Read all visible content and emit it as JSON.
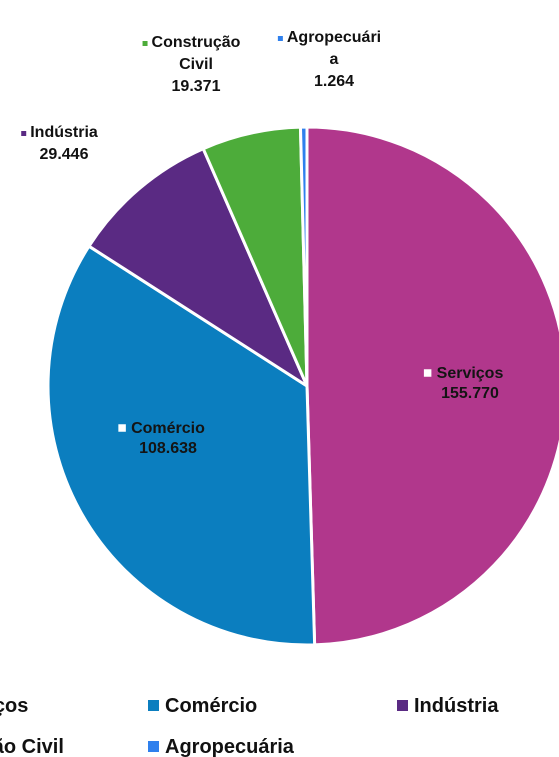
{
  "chart_data": {
    "type": "pie",
    "title": "",
    "categories": [
      "Serviços",
      "Comércio",
      "Indústria",
      "Construção Civil",
      "Agropecuária"
    ],
    "values": [
      155770,
      108638,
      29446,
      19371,
      1264
    ],
    "value_labels": [
      "155.770",
      "108.638",
      "29.446",
      "19.371",
      "1.264"
    ],
    "slice_label_lines": [
      [
        "Serviços"
      ],
      [
        "Comércio"
      ],
      [
        "Indústria"
      ],
      [
        "Construção",
        "Civil"
      ],
      [
        "Agropecuári",
        "a"
      ]
    ],
    "colors": [
      "#b1378c",
      "#0b7ebf",
      "#5a2a83",
      "#4dac3a",
      "#2f80ed"
    ],
    "legend": {
      "placement": "bottom",
      "entries": [
        "Serviços",
        "Comércio",
        "Indústria",
        "Construção Civil",
        "Agropecuária"
      ]
    }
  }
}
